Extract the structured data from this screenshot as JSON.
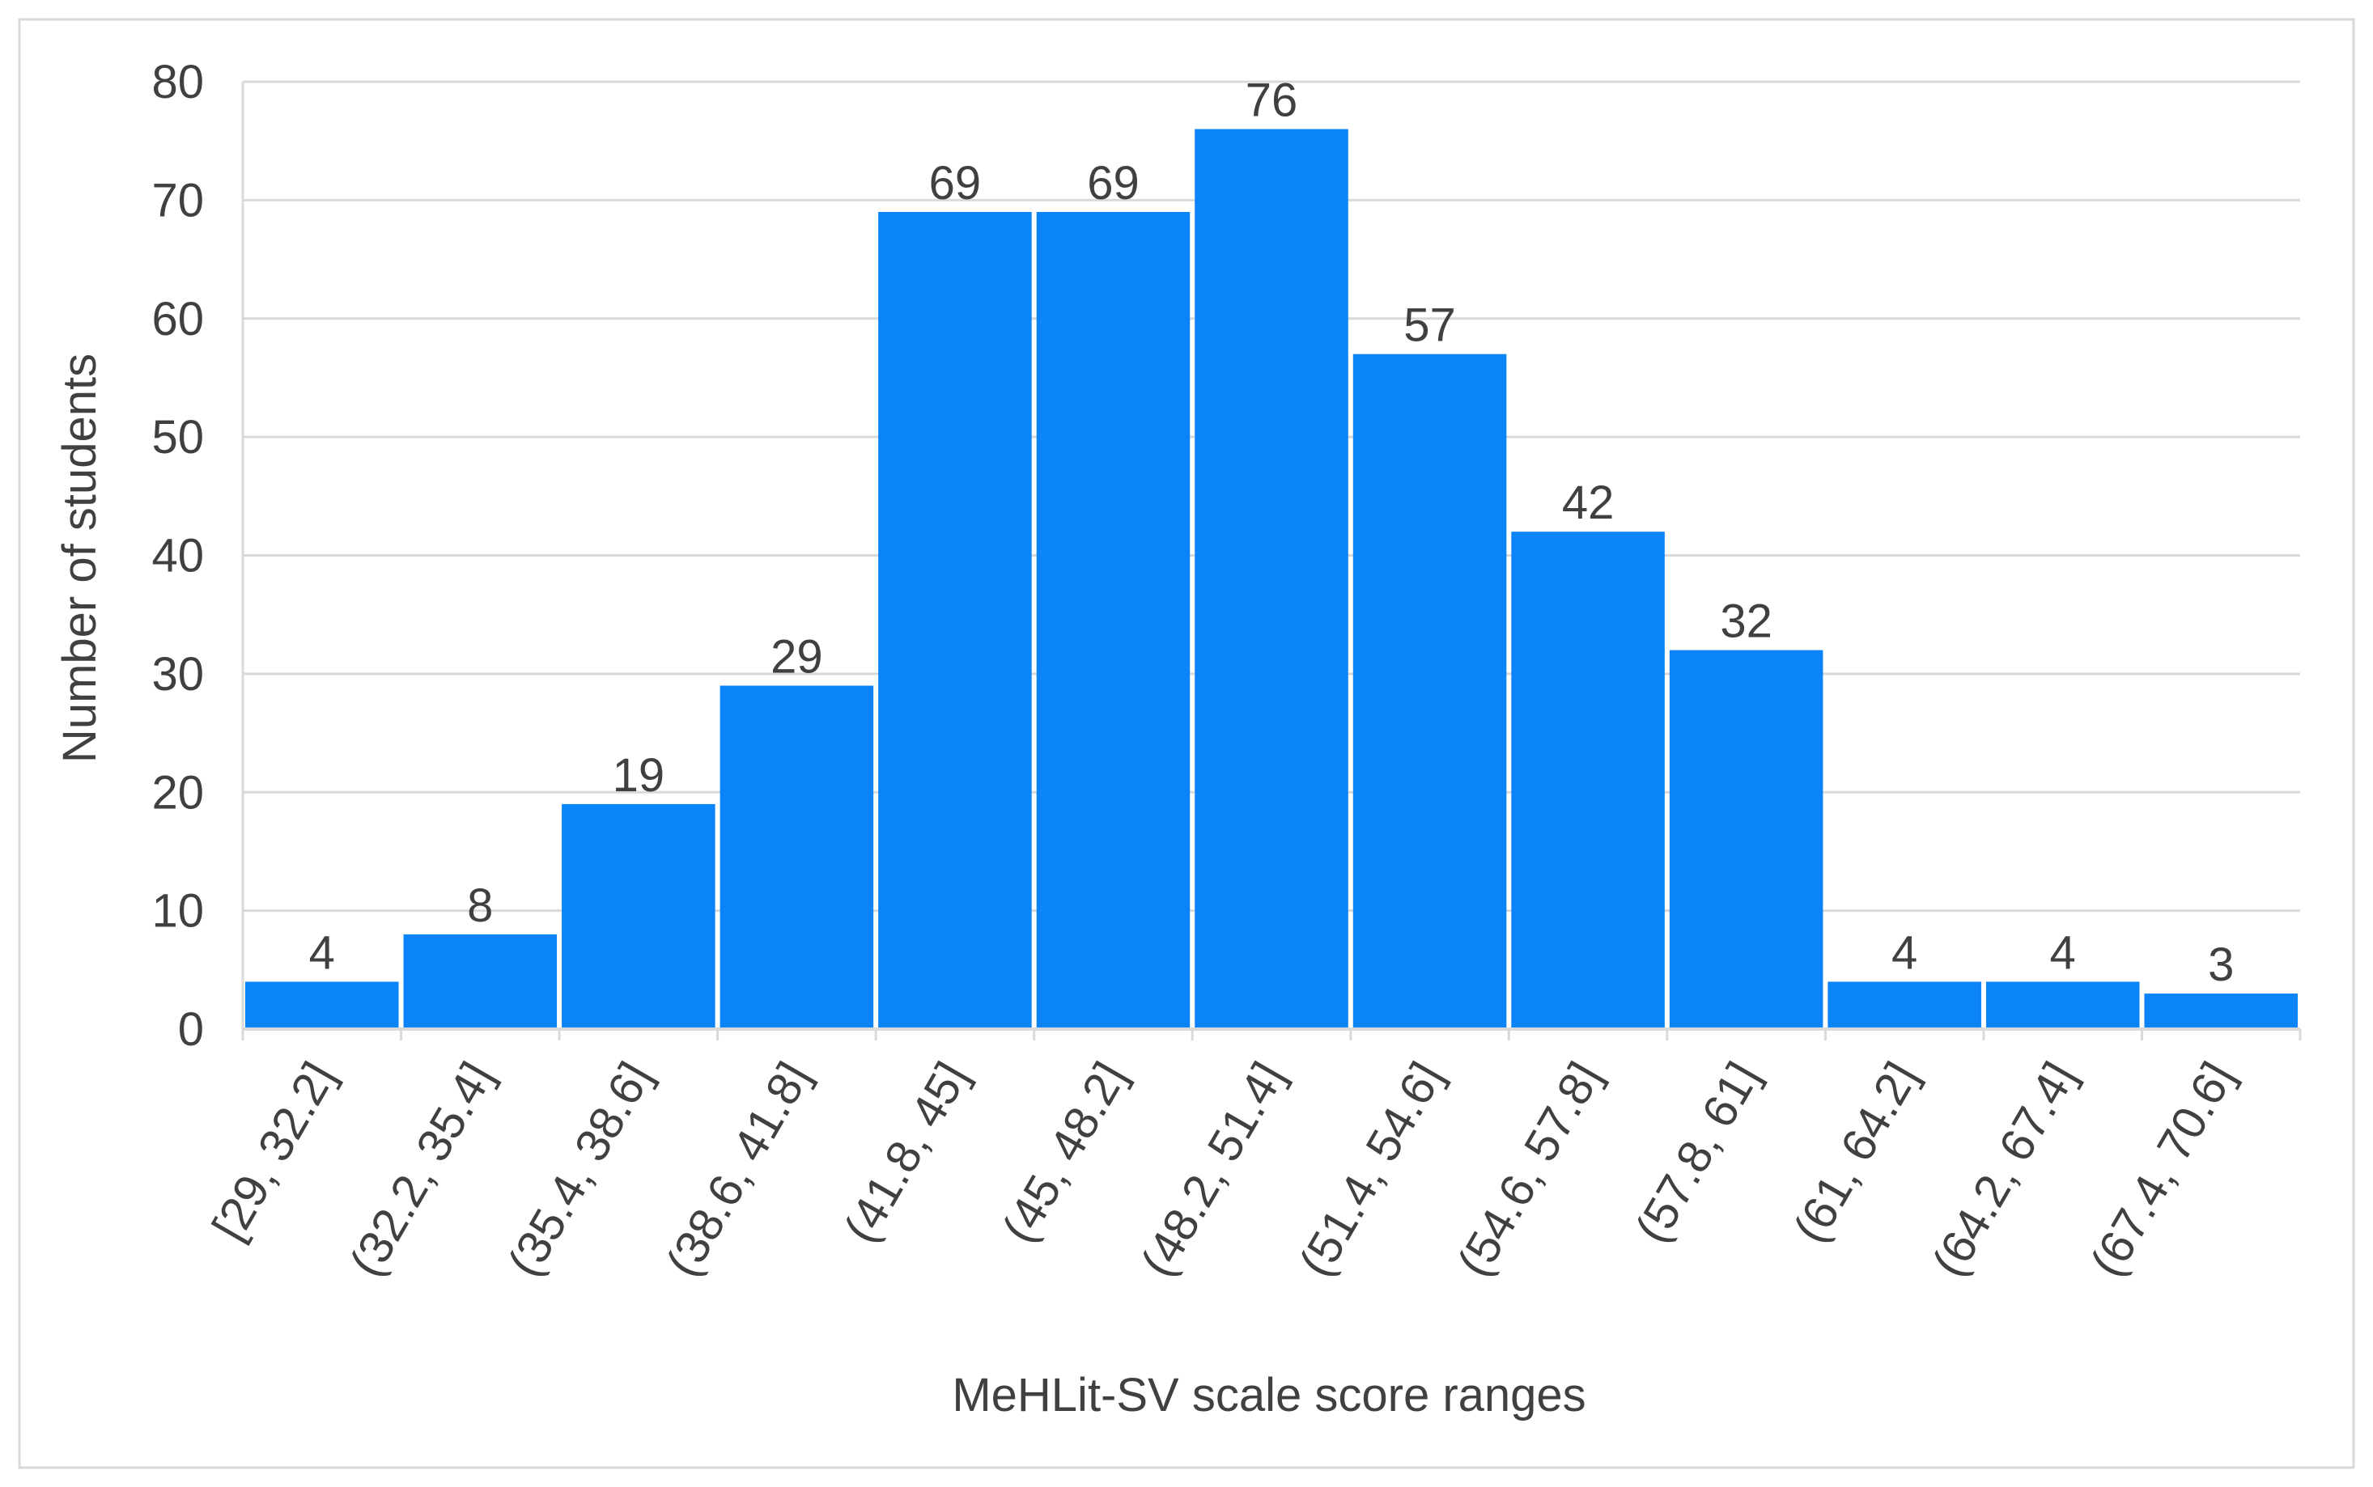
{
  "chart_data": {
    "type": "bar",
    "title": "",
    "xlabel": "MeHLit-SV scale score ranges",
    "ylabel": "Number of students",
    "categories": [
      "[29, 32.2]",
      "(32.2, 35.4]",
      "(35.4, 38.6]",
      "(38.6, 41.8]",
      "(41.8, 45]",
      "(45, 48.2]",
      "(48.2, 51.4]",
      "(51.4, 54.6]",
      "(54.6, 57.8]",
      "(57.8, 61]",
      "(61, 64.2]",
      "(64.2, 67.4]",
      "(67.4, 70.6]"
    ],
    "values": [
      4,
      8,
      19,
      29,
      69,
      69,
      76,
      57,
      42,
      32,
      4,
      4,
      3
    ],
    "ylim": [
      0,
      80
    ],
    "yticks": [
      0,
      10,
      20,
      30,
      40,
      50,
      60,
      70,
      80
    ],
    "grid": true,
    "legend": "none",
    "data_labels": true,
    "bar_color": "#0a84f8",
    "grid_color": "#d9d9d9",
    "text_color": "#404040"
  }
}
